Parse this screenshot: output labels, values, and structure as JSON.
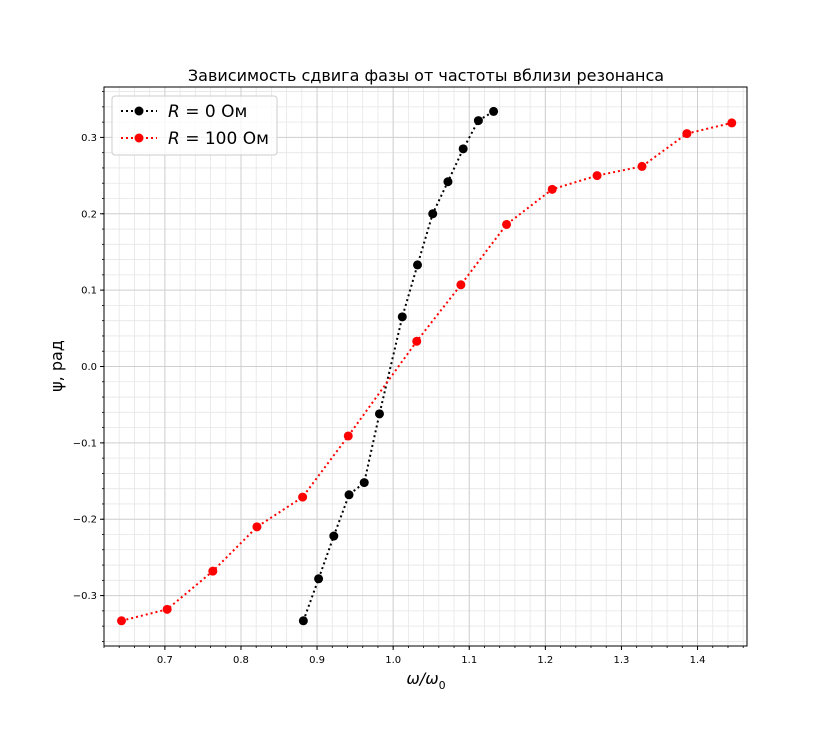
{
  "chart_data": {
    "type": "line",
    "title": "Зависимость сдвига фазы от частоты вблизи резонанса",
    "xlabel_main": "ω/ω",
    "xlabel_sub": "0",
    "ylabel": "ψ, рад",
    "xlim": [
      0.62,
      1.465
    ],
    "ylim": [
      -0.366,
      0.366
    ],
    "x_ticks": [
      0.7,
      0.8,
      0.9,
      1.0,
      1.1,
      1.2,
      1.3,
      1.4
    ],
    "x_tick_labels": [
      "0.7",
      "0.8",
      "0.9",
      "1.0",
      "1.1",
      "1.2",
      "1.3",
      "1.4"
    ],
    "y_ticks": [
      -0.3,
      -0.2,
      -0.1,
      0.0,
      0.1,
      0.2,
      0.3
    ],
    "y_tick_labels": [
      "−0.3",
      "−0.2",
      "−0.1",
      "0.0",
      "0.1",
      "0.2",
      "0.3"
    ],
    "x_minor_step": 0.02,
    "y_minor_step": 0.02,
    "grid": true,
    "legend_position": "upper-left",
    "series": [
      {
        "name_var": "R",
        "name_rest": " = 0 Ом",
        "color": "#000000",
        "x": [
          0.882,
          0.902,
          0.922,
          0.942,
          0.962,
          0.982,
          1.012,
          1.032,
          1.052,
          1.072,
          1.092,
          1.112,
          1.132
        ],
        "y": [
          -0.333,
          -0.278,
          -0.222,
          -0.168,
          -0.152,
          -0.062,
          0.065,
          0.133,
          0.2,
          0.242,
          0.285,
          0.322,
          0.334
        ]
      },
      {
        "name_var": "R",
        "name_rest": " = 100 Ом",
        "color": "#ff0000",
        "x": [
          0.643,
          0.703,
          0.763,
          0.821,
          0.881,
          0.941,
          1.031,
          1.089,
          1.149,
          1.209,
          1.268,
          1.327,
          1.386,
          1.445
        ],
        "y": [
          -0.333,
          -0.318,
          -0.268,
          -0.21,
          -0.171,
          -0.091,
          0.033,
          0.107,
          0.186,
          0.232,
          0.25,
          0.262,
          0.305,
          0.319
        ]
      }
    ]
  }
}
